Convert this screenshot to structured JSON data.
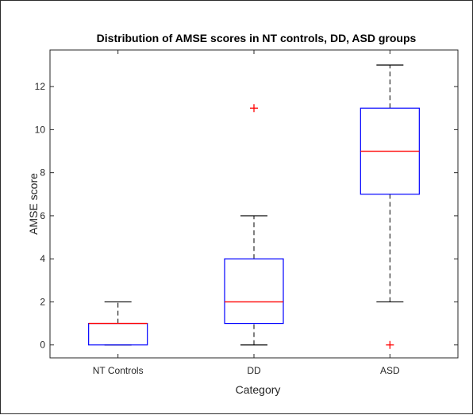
{
  "chart_data": {
    "type": "box",
    "title": "Distribution of AMSE scores in NT controls, DD, ASD groups",
    "xlabel": "Category",
    "ylabel": "AMSE score",
    "categories": [
      "NT Controls",
      "DD",
      "ASD"
    ],
    "ylim": [
      -0.6,
      13.7
    ],
    "yticks": [
      0,
      2,
      4,
      6,
      8,
      10,
      12
    ],
    "grid": false,
    "boxes": [
      {
        "category": "NT Controls",
        "whisker_low": 0,
        "q1": 0,
        "median": 1,
        "q3": 1,
        "whisker_high": 2,
        "outliers": []
      },
      {
        "category": "DD",
        "whisker_low": 0,
        "q1": 1,
        "median": 2,
        "q3": 4,
        "whisker_high": 6,
        "outliers": [
          11
        ]
      },
      {
        "category": "ASD",
        "whisker_low": 2,
        "q1": 7,
        "median": 9,
        "q3": 11,
        "whisker_high": 13,
        "outliers": [
          0
        ]
      }
    ],
    "colors": {
      "box": "#0000ff",
      "median": "#ff0000",
      "whisker": "#000000",
      "outlier": "#ff0000",
      "axes": "#262626"
    }
  }
}
